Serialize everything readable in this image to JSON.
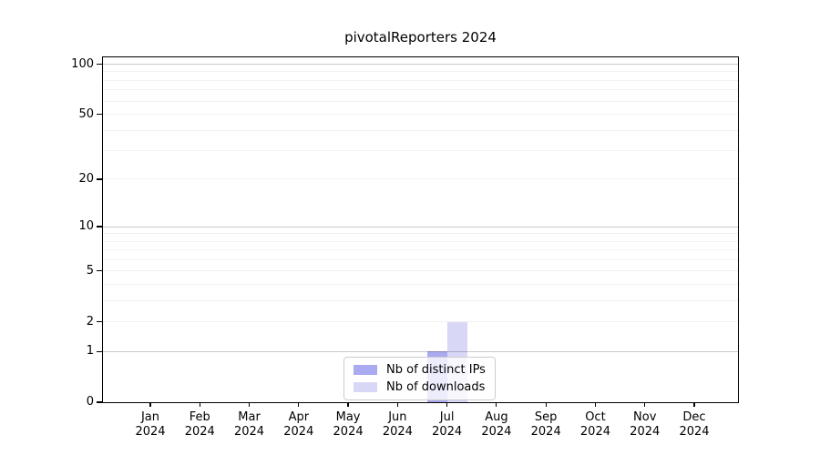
{
  "chart_data": {
    "type": "bar",
    "title": "pivotalReporters 2024",
    "y_scale": "log1p",
    "months": [
      "Jan",
      "Feb",
      "Mar",
      "Apr",
      "May",
      "Jun",
      "Jul",
      "Aug",
      "Sep",
      "Oct",
      "Nov",
      "Dec"
    ],
    "year": "2024",
    "xlabel": "",
    "ylabel": "",
    "ylim": [
      0,
      110
    ],
    "y_tick_labels": [
      0,
      1,
      2,
      5,
      10,
      20,
      50,
      100
    ],
    "y_major_gridlines": [
      1,
      10,
      100
    ],
    "y_minor_gridlines": [
      2,
      3,
      4,
      5,
      6,
      7,
      8,
      9,
      20,
      30,
      40,
      50,
      60,
      70,
      80,
      90
    ],
    "grid": "on",
    "legend_position": "lower center",
    "series": [
      {
        "name": "Nb of distinct IPs",
        "color": "#aaaaf0",
        "values": [
          0,
          0,
          0,
          0,
          0,
          0,
          1,
          0,
          0,
          0,
          0,
          0
        ]
      },
      {
        "name": "Nb of downloads",
        "color": "#d8d8f6",
        "values": [
          0,
          0,
          0,
          0,
          0,
          0,
          2,
          0,
          0,
          0,
          0,
          0
        ]
      }
    ],
    "colors": {
      "major_grid": "rgba(0,0,0,0.21)",
      "minor_grid": "rgba(0,0,0,0.055)",
      "axis": "#000000"
    }
  }
}
